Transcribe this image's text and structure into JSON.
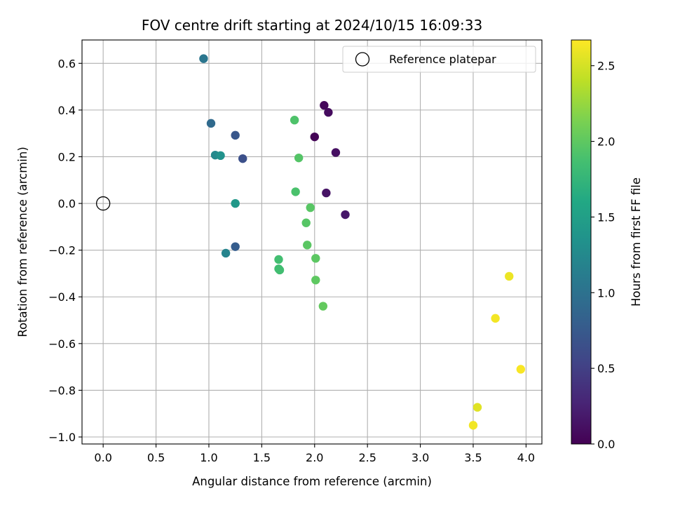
{
  "chart_data": {
    "type": "scatter",
    "title": "FOV centre drift starting at 2024/10/15 16:09:33",
    "xlabel": "Angular distance from reference (arcmin)",
    "ylabel": "Rotation from reference (arcmin)",
    "xlim": [
      -0.2,
      4.15
    ],
    "ylim": [
      -1.03,
      0.7
    ],
    "x_ticks": [
      0.0,
      0.5,
      1.0,
      1.5,
      2.0,
      2.5,
      3.0,
      3.5,
      4.0
    ],
    "x_tick_labels": [
      "0.0",
      "0.5",
      "1.0",
      "1.5",
      "2.0",
      "2.5",
      "3.0",
      "3.5",
      "4.0"
    ],
    "y_ticks": [
      0.6,
      0.4,
      0.2,
      0.0,
      -0.2,
      -0.4,
      -0.6,
      -0.8,
      -1.0
    ],
    "y_tick_labels": [
      "0.6",
      "0.4",
      "0.2",
      "0.0",
      "−0.2",
      "−0.4",
      "−0.6",
      "−0.8",
      "−1.0"
    ],
    "grid": true,
    "legend": {
      "placement": "top-right",
      "entries": [
        "Reference platepar"
      ]
    },
    "reference_point": {
      "x": 0.0,
      "y": 0.0
    },
    "colormap": "viridis",
    "colorbar": {
      "label": "Hours from first FF file",
      "range": [
        0.0,
        2.67
      ],
      "ticks": [
        0.0,
        0.5,
        1.0,
        1.5,
        2.0,
        2.5
      ],
      "tick_labels": [
        "0.0",
        "0.5",
        "1.0",
        "1.5",
        "2.0",
        "2.5"
      ]
    },
    "points": [
      {
        "x": 2.09,
        "y": 0.42,
        "h": 0.05
      },
      {
        "x": 2.13,
        "y": 0.39,
        "h": 0.08
      },
      {
        "x": 2.0,
        "y": 0.285,
        "h": 0.02
      },
      {
        "x": 2.2,
        "y": 0.218,
        "h": 0.11
      },
      {
        "x": 2.11,
        "y": 0.045,
        "h": 0.14
      },
      {
        "x": 2.29,
        "y": -0.048,
        "h": 0.17
      },
      {
        "x": 0.95,
        "y": 0.62,
        "h": 1.05
      },
      {
        "x": 1.02,
        "y": 0.343,
        "h": 0.92
      },
      {
        "x": 1.25,
        "y": 0.292,
        "h": 0.72
      },
      {
        "x": 1.32,
        "y": 0.192,
        "h": 0.65
      },
      {
        "x": 1.06,
        "y": 0.207,
        "h": 1.25
      },
      {
        "x": 1.11,
        "y": 0.205,
        "h": 1.35
      },
      {
        "x": 1.25,
        "y": 0.0,
        "h": 1.42
      },
      {
        "x": 1.25,
        "y": -0.185,
        "h": 0.78
      },
      {
        "x": 1.16,
        "y": -0.213,
        "h": 1.2
      },
      {
        "x": 1.81,
        "y": 0.357,
        "h": 1.92
      },
      {
        "x": 1.85,
        "y": 0.195,
        "h": 1.95
      },
      {
        "x": 1.82,
        "y": 0.05,
        "h": 1.9
      },
      {
        "x": 1.96,
        "y": -0.018,
        "h": 1.97
      },
      {
        "x": 1.92,
        "y": -0.083,
        "h": 1.96
      },
      {
        "x": 1.93,
        "y": -0.178,
        "h": 1.98
      },
      {
        "x": 1.66,
        "y": -0.24,
        "h": 1.86
      },
      {
        "x": 2.01,
        "y": -0.235,
        "h": 1.99
      },
      {
        "x": 1.66,
        "y": -0.28,
        "h": 1.84
      },
      {
        "x": 1.67,
        "y": -0.285,
        "h": 1.85
      },
      {
        "x": 2.01,
        "y": -0.328,
        "h": 2.0
      },
      {
        "x": 2.08,
        "y": -0.44,
        "h": 2.02
      },
      {
        "x": 3.84,
        "y": -0.312,
        "h": 2.6
      },
      {
        "x": 3.71,
        "y": -0.492,
        "h": 2.63
      },
      {
        "x": 3.95,
        "y": -0.71,
        "h": 2.65
      },
      {
        "x": 3.54,
        "y": -0.873,
        "h": 2.55
      },
      {
        "x": 3.5,
        "y": -0.95,
        "h": 2.62
      }
    ]
  }
}
